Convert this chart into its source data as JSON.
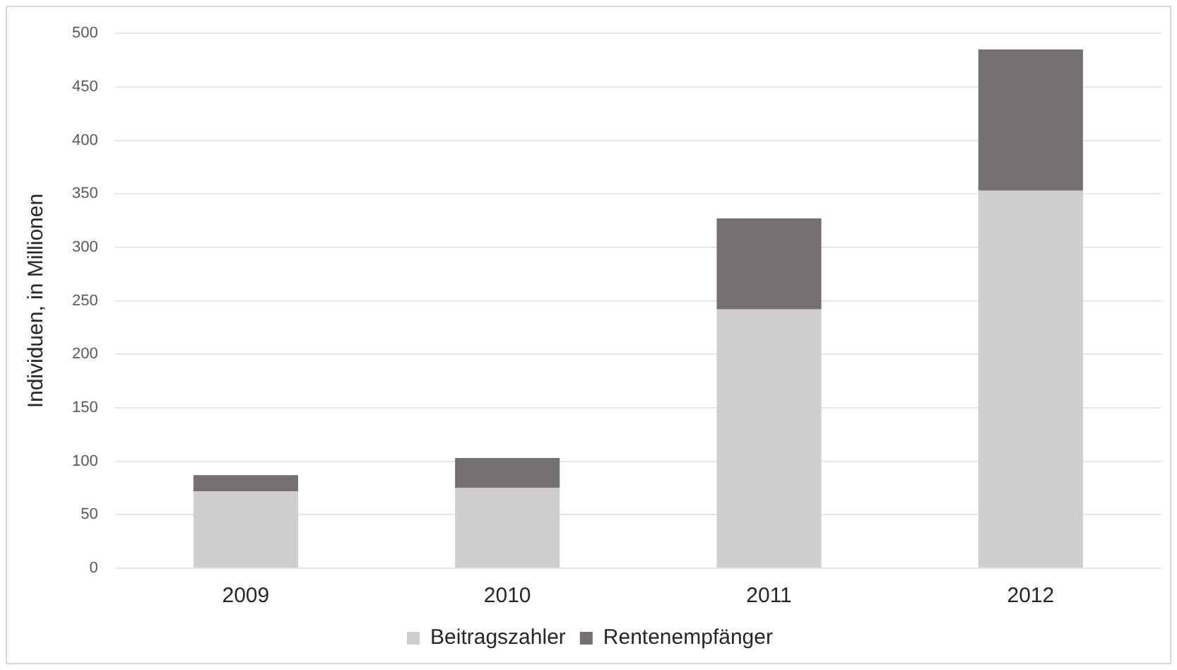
{
  "chart_data": {
    "type": "bar",
    "stacked": true,
    "ylabel": "Individuen, in Millionen",
    "categories": [
      "2009",
      "2010",
      "2011",
      "2012"
    ],
    "series": [
      {
        "name": "Beitragszahler",
        "color": "#cfcdce",
        "values": [
          72,
          75,
          242,
          353
        ]
      },
      {
        "name": "Rentenempfänger",
        "color": "#767171",
        "values": [
          15,
          28,
          85,
          132
        ]
      }
    ],
    "ylim": [
      0,
      500
    ],
    "yticks": [
      0,
      50,
      100,
      150,
      200,
      250,
      300,
      350,
      400,
      450,
      500
    ],
    "grid": "y",
    "legend": "bottom"
  }
}
